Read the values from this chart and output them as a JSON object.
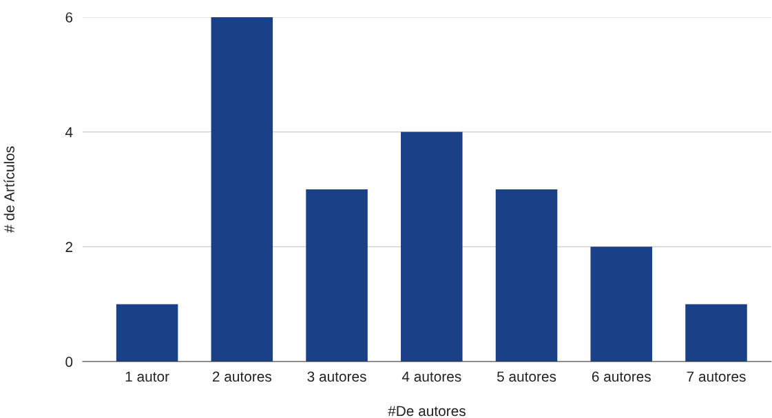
{
  "chart_data": {
    "type": "bar",
    "xlabel": "#De autores",
    "ylabel": "# de Artículos",
    "categories": [
      "1 autor",
      "2 autores",
      "3 autores",
      "4 autores",
      "5 autores",
      "6 autores",
      "7 autores"
    ],
    "values": [
      1,
      6,
      3,
      4,
      3,
      2,
      1
    ],
    "color": "#1a4187",
    "ylim": [
      0,
      6
    ],
    "yticks": [
      0,
      2,
      4,
      6
    ],
    "grid": "y",
    "legend": false
  }
}
